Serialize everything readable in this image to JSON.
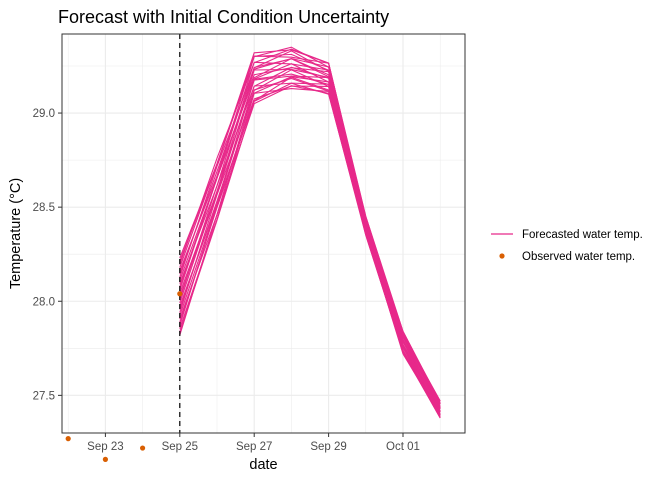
{
  "chart_data": {
    "type": "line",
    "title": "Forecast with Initial Condition Uncertainty",
    "xlabel": "date",
    "ylabel": "Temperature (°C)",
    "xlim": [
      "2023-09-21T20:00",
      "2023-10-02T16:00"
    ],
    "ylim": [
      27.3,
      29.42
    ],
    "x_ticks": [
      "2023-09-23",
      "2023-09-25",
      "2023-09-27",
      "2023-09-29",
      "2023-10-01"
    ],
    "x_tick_labels": [
      "Sep 23",
      "Sep 25",
      "Sep 27",
      "Sep 29",
      "Oct 01"
    ],
    "y_ticks": [
      27.5,
      28.0,
      28.5,
      29.0
    ],
    "y_tick_labels": [
      "27.5",
      "28.0",
      "28.5",
      "29.0"
    ],
    "grid": true,
    "legend_position": "right",
    "colors": {
      "forecast": "#e7298a",
      "observed": "#d95f02",
      "vline": "#000000",
      "grid": "#ebebeb",
      "panel_border": "#333333"
    },
    "forecast_start": "2023-09-25",
    "forecast_dates": [
      "2023-09-25",
      "2023-09-26",
      "2023-09-27",
      "2023-09-28",
      "2023-09-29",
      "2023-09-30",
      "2023-10-01",
      "2023-10-02"
    ],
    "ensemble": {
      "members": 25,
      "initial_range": [
        27.82,
        28.23
      ],
      "band_low": [
        27.82,
        28.43,
        29.05,
        29.13,
        29.1,
        28.35,
        27.72,
        27.38
      ],
      "band_high": [
        28.23,
        28.76,
        29.32,
        29.35,
        29.27,
        28.45,
        27.84,
        27.47
      ]
    },
    "series": [
      {
        "name": "Observed water temp.",
        "type": "scatter",
        "x": [
          "2023-09-22",
          "2023-09-23",
          "2023-09-24",
          "2023-09-25"
        ],
        "y": [
          27.27,
          27.16,
          27.22,
          28.04
        ]
      }
    ],
    "legend": [
      {
        "label": "Forecasted water temp.",
        "kind": "line"
      },
      {
        "label": "Observed water temp.",
        "kind": "point"
      }
    ]
  }
}
